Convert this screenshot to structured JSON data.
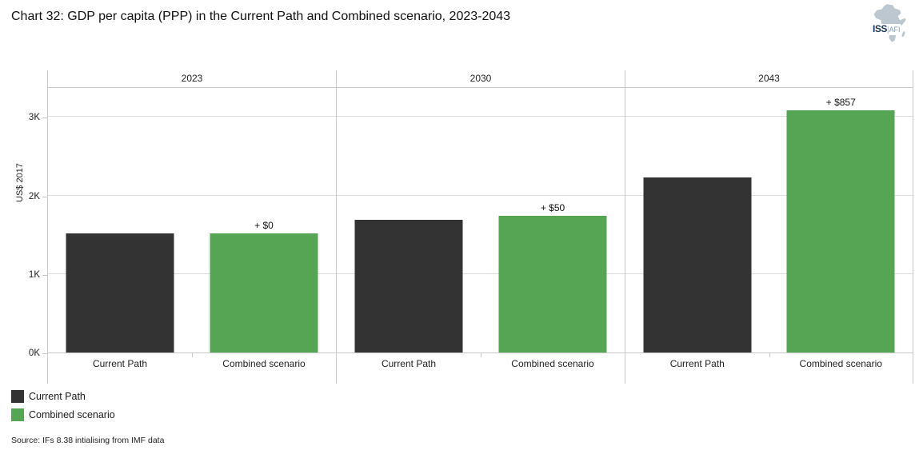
{
  "title": "Chart 32: GDP per capita (PPP) in the Current Path and Combined scenario, 2023-2043",
  "logo": {
    "iss": "ISS",
    "separator": "|",
    "afi": "AFI"
  },
  "chart_data": {
    "type": "bar",
    "title": "GDP per capita (PPP) in the Current Path and Combined scenario, 2023-2043",
    "ylabel": "US$ 2017",
    "ylim": [
      0,
      3380
    ],
    "ytick_values": [
      0,
      1000,
      2000,
      3000
    ],
    "ytick_labels": [
      "0K",
      "1K",
      "2K",
      "3K"
    ],
    "grid": "horizontal",
    "categories": [
      "Current Path",
      "Combined scenario"
    ],
    "colors": {
      "current_path": "#333333",
      "combined_scenario": "#55a555"
    },
    "panels": [
      {
        "year": "2023",
        "bars": [
          {
            "series": "Current Path",
            "value": 1516
          },
          {
            "series": "Combined scenario",
            "value": 1516,
            "annotation": "+ $0"
          }
        ]
      },
      {
        "year": "2030",
        "bars": [
          {
            "series": "Current Path",
            "value": 1686
          },
          {
            "series": "Combined scenario",
            "value": 1736,
            "annotation": "+ $50"
          }
        ]
      },
      {
        "year": "2043",
        "bars": [
          {
            "series": "Current Path",
            "value": 2228
          },
          {
            "series": "Combined scenario",
            "value": 3085,
            "annotation": "+ $857"
          }
        ]
      }
    ],
    "legend_position": "bottom-left"
  },
  "legend": [
    {
      "label": "Current Path",
      "color": "#333333"
    },
    {
      "label": "Combined scenario",
      "color": "#55a555"
    }
  ],
  "source": "Source: IFs 8.38 intialising from IMF data"
}
